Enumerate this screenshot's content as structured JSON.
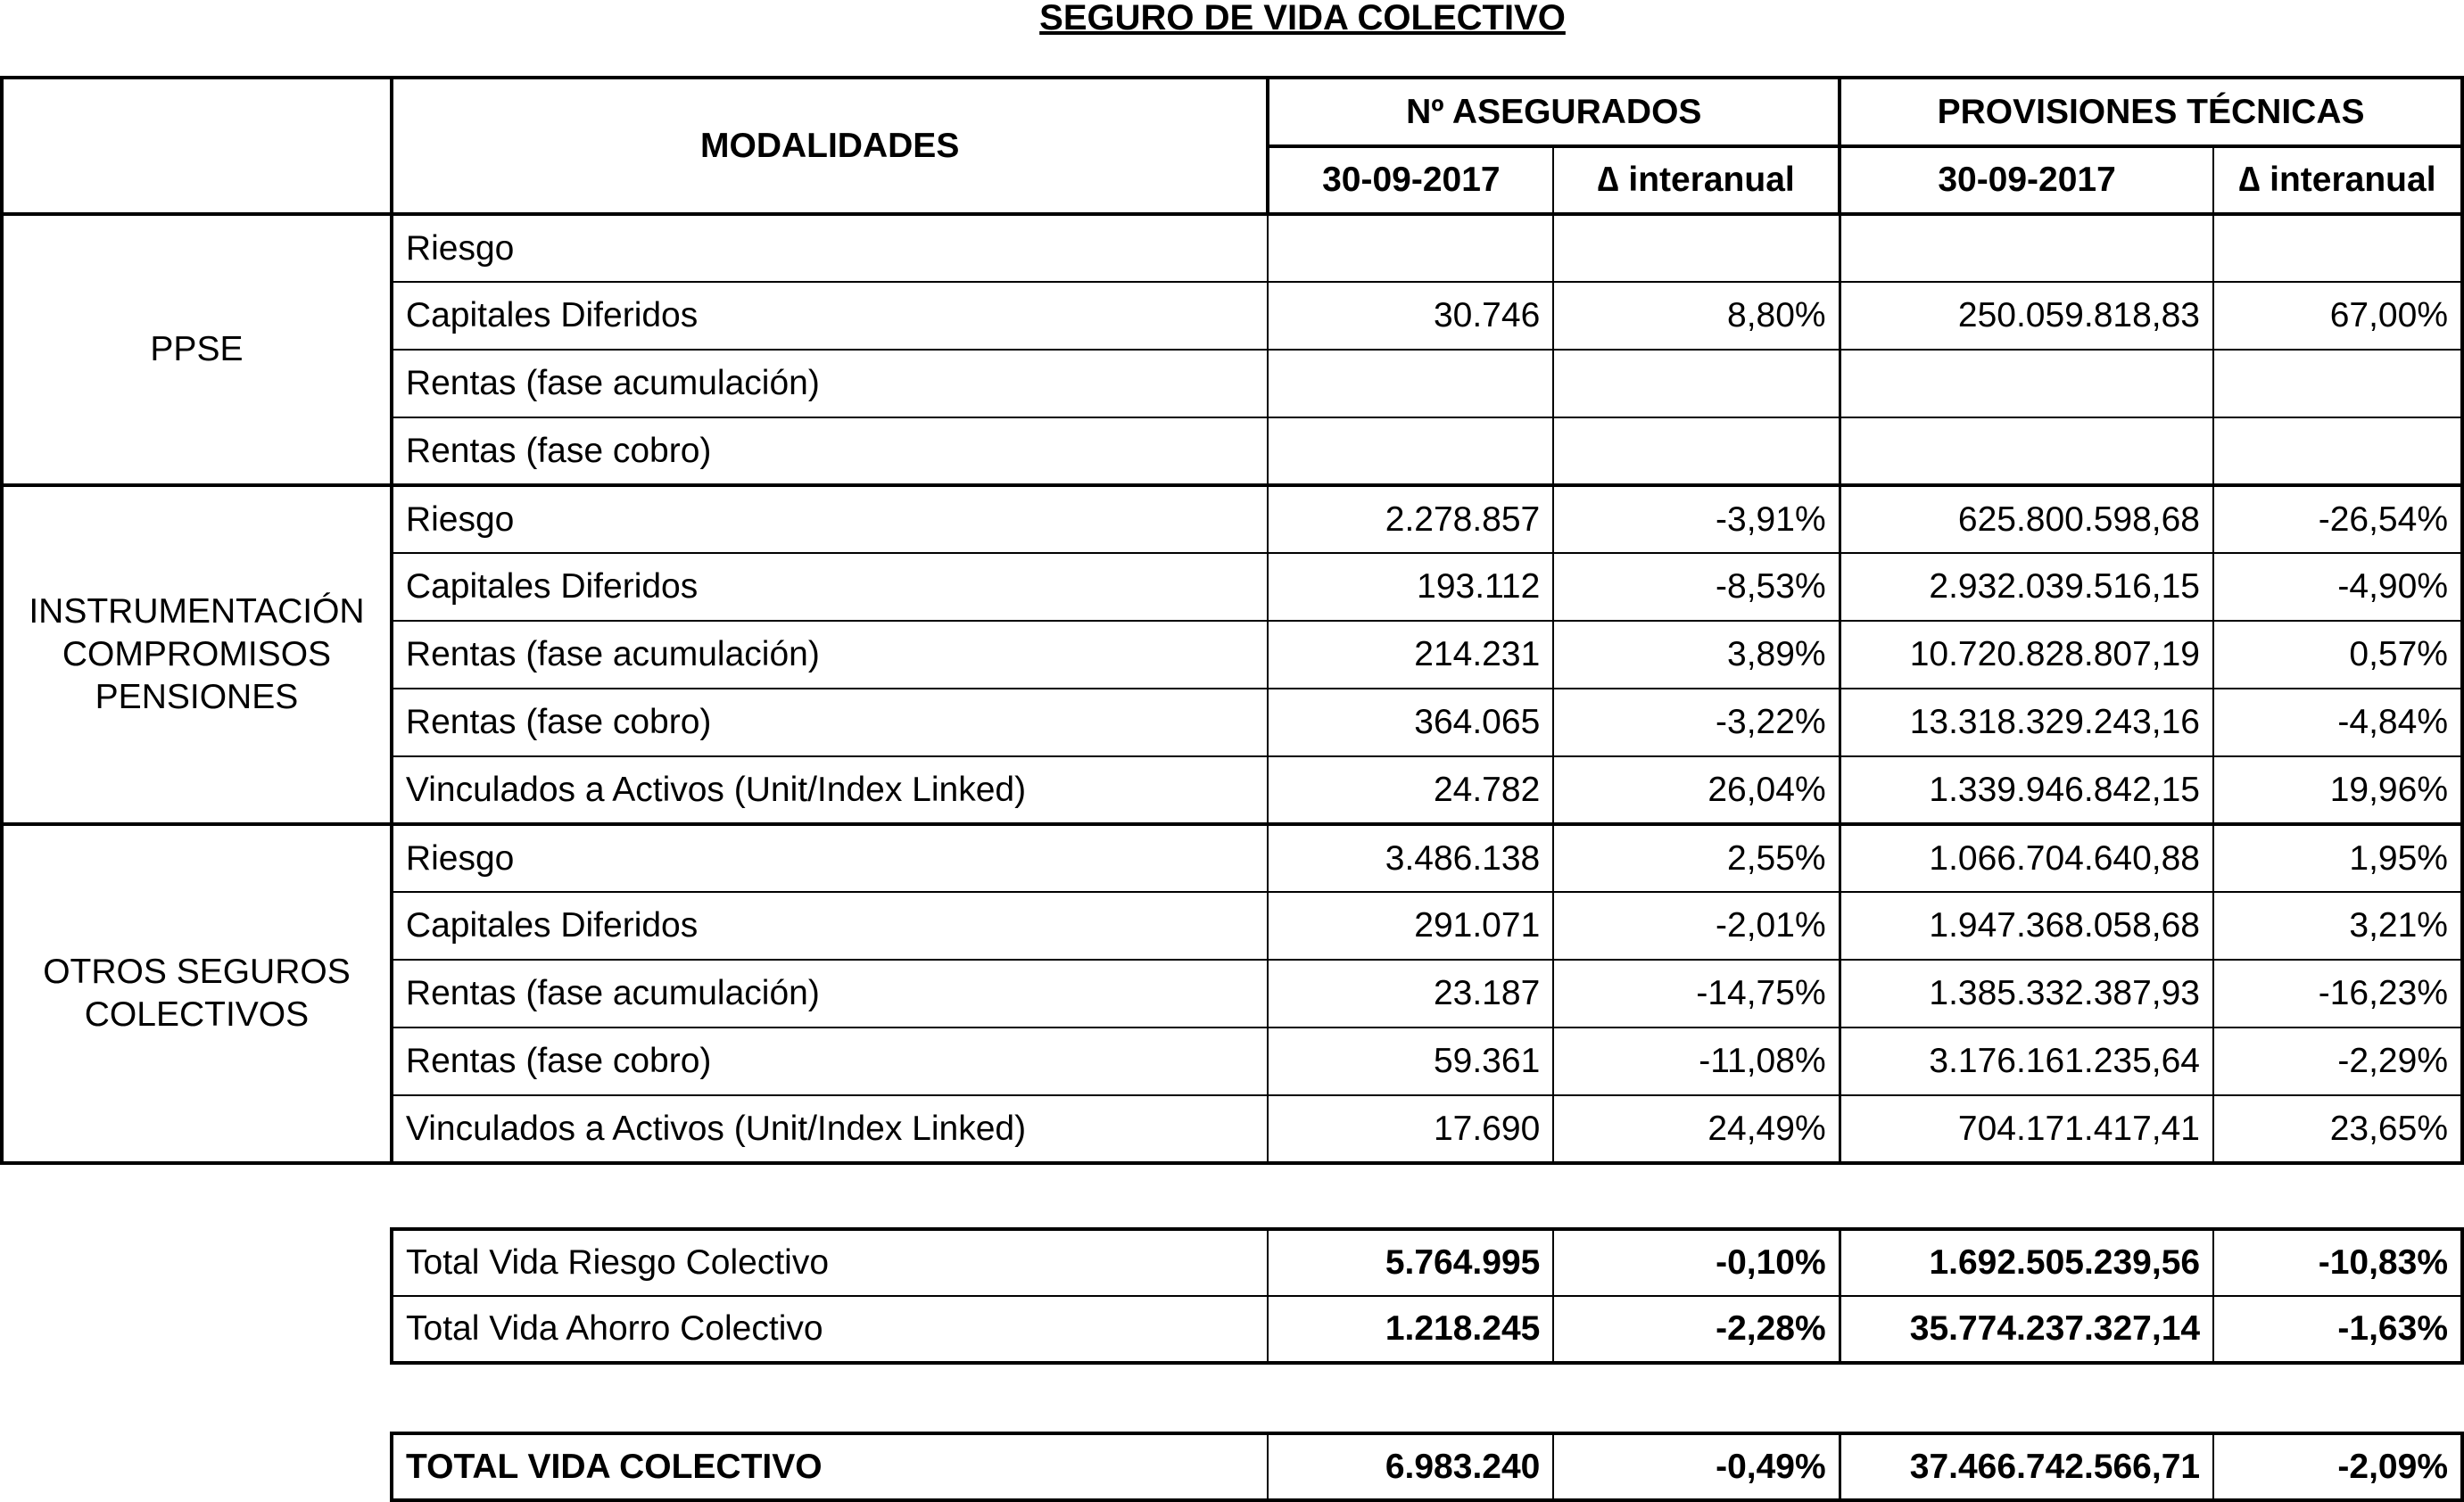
{
  "title": "SEGURO DE VIDA COLECTIVO",
  "header": {
    "modalidades": "MODALIDADES",
    "asegurados": "Nº ASEGURADOS",
    "provisiones": "PROVISIONES TÉCNICAS",
    "date": "30-09-2017",
    "delta": "∆ interanual"
  },
  "groups": [
    {
      "name": "PPSE",
      "rows": [
        {
          "label": "Riesgo",
          "aseg": "",
          "aseg_delta": "",
          "prov": "",
          "prov_delta": ""
        },
        {
          "label": "Capitales Diferidos",
          "aseg": "30.746",
          "aseg_delta": "8,80%",
          "prov": "250.059.818,83",
          "prov_delta": "67,00%"
        },
        {
          "label": "Rentas (fase acumulación)",
          "aseg": "",
          "aseg_delta": "",
          "prov": "",
          "prov_delta": ""
        },
        {
          "label": "Rentas (fase cobro)",
          "aseg": "",
          "aseg_delta": "",
          "prov": "",
          "prov_delta": ""
        }
      ]
    },
    {
      "name": "INSTRUMENTACIÓN COMPROMISOS PENSIONES",
      "rows": [
        {
          "label": "Riesgo",
          "aseg": "2.278.857",
          "aseg_delta": "-3,91%",
          "prov": "625.800.598,68",
          "prov_delta": "-26,54%"
        },
        {
          "label": "Capitales Diferidos",
          "aseg": "193.112",
          "aseg_delta": "-8,53%",
          "prov": "2.932.039.516,15",
          "prov_delta": "-4,90%"
        },
        {
          "label": "Rentas (fase acumulación)",
          "aseg": "214.231",
          "aseg_delta": "3,89%",
          "prov": "10.720.828.807,19",
          "prov_delta": "0,57%"
        },
        {
          "label": "Rentas (fase cobro)",
          "aseg": "364.065",
          "aseg_delta": "-3,22%",
          "prov": "13.318.329.243,16",
          "prov_delta": "-4,84%"
        },
        {
          "label": "Vinculados a Activos (Unit/Index Linked)",
          "aseg": "24.782",
          "aseg_delta": "26,04%",
          "prov": "1.339.946.842,15",
          "prov_delta": "19,96%"
        }
      ]
    },
    {
      "name": "OTROS SEGUROS COLECTIVOS",
      "rows": [
        {
          "label": "Riesgo",
          "aseg": "3.486.138",
          "aseg_delta": "2,55%",
          "prov": "1.066.704.640,88",
          "prov_delta": "1,95%"
        },
        {
          "label": "Capitales Diferidos",
          "aseg": "291.071",
          "aseg_delta": "-2,01%",
          "prov": "1.947.368.058,68",
          "prov_delta": "3,21%"
        },
        {
          "label": "Rentas (fase acumulación)",
          "aseg": "23.187",
          "aseg_delta": "-14,75%",
          "prov": "1.385.332.387,93",
          "prov_delta": "-16,23%"
        },
        {
          "label": "Rentas (fase cobro)",
          "aseg": "59.361",
          "aseg_delta": "-11,08%",
          "prov": "3.176.161.235,64",
          "prov_delta": "-2,29%"
        },
        {
          "label": "Vinculados a Activos (Unit/Index Linked)",
          "aseg": "17.690",
          "aseg_delta": "24,49%",
          "prov": "704.171.417,41",
          "prov_delta": "23,65%"
        }
      ]
    }
  ],
  "totals": [
    {
      "label": "Total Vida Riesgo Colectivo",
      "aseg": "5.764.995",
      "aseg_delta": "-0,10%",
      "prov": "1.692.505.239,56",
      "prov_delta": "-10,83%"
    },
    {
      "label": "Total Vida Ahorro Colectivo",
      "aseg": "1.218.245",
      "aseg_delta": "-2,28%",
      "prov": "35.774.237.327,14",
      "prov_delta": "-1,63%"
    }
  ],
  "grand_total": {
    "label": "TOTAL VIDA COLECTIVO",
    "aseg": "6.983.240",
    "aseg_delta": "-0,49%",
    "prov": "37.466.742.566,71",
    "prov_delta": "-2,09%"
  }
}
